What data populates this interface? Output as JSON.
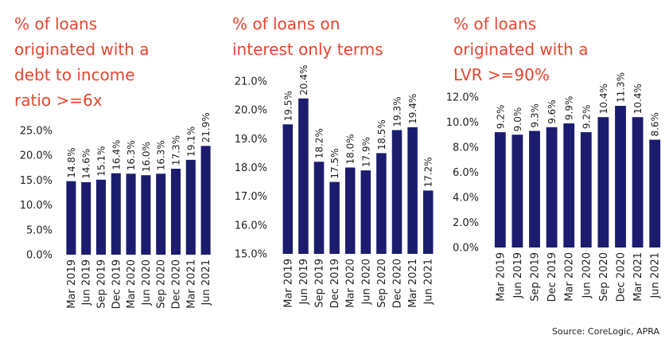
{
  "source": "Source:  CoreLogic, APRA",
  "colors": {
    "bar": "#1c1c6e",
    "title": "#e8452e",
    "text": "#222222"
  },
  "chart_data": [
    {
      "type": "bar",
      "title_lines": [
        "% of loans",
        "originated with a",
        "debt to income",
        "ratio >=6x"
      ],
      "categories": [
        "Mar 2019",
        "Jun 2019",
        "Sep 2019",
        "Dec 2019",
        "Mar 2020",
        "Jun 2020",
        "Sep 2020",
        "Dec 2020",
        "Mar 2021",
        "Jun 2021"
      ],
      "values": [
        14.8,
        14.6,
        15.1,
        16.4,
        16.3,
        16.0,
        16.3,
        17.3,
        19.1,
        21.9
      ],
      "value_labels": [
        "14.8%",
        "14.6%",
        "15.1%",
        "16.4%",
        "16.3%",
        "16.0%",
        "16.3%",
        "17.3%",
        "19.1%",
        "21.9%"
      ],
      "ylim": [
        0,
        25
      ],
      "yticks": [
        "0.0%",
        "5.0%",
        "10.0%",
        "15.0%",
        "20.0%",
        "25.0%"
      ]
    },
    {
      "type": "bar",
      "title_lines": [
        "% of loans on",
        "interest only terms"
      ],
      "categories": [
        "Mar 2019",
        "Jun 2019",
        "Sep 2019",
        "Dec 2019",
        "Mar 2020",
        "Jun 2020",
        "Sep 2020",
        "Dec 2020",
        "Mar 2021",
        "Jun 2021"
      ],
      "values": [
        19.5,
        20.4,
        18.2,
        17.5,
        18.0,
        17.9,
        18.5,
        19.3,
        19.4,
        17.2
      ],
      "value_labels": [
        "19.5%",
        "20.4%",
        "18.2%",
        "17.5%",
        "18.0%",
        "17.9%",
        "18.5%",
        "19.3%",
        "19.4%",
        "17.2%"
      ],
      "ylim": [
        15,
        21
      ],
      "yticks": [
        "15.0%",
        "16.0%",
        "17.0%",
        "18.0%",
        "19.0%",
        "20.0%",
        "21.0%"
      ]
    },
    {
      "type": "bar",
      "title_lines": [
        "% of loans",
        "originated with a",
        "LVR >=90%"
      ],
      "categories": [
        "Mar 2019",
        "Jun 2019",
        "Sep 2019",
        "Dec 2019",
        "Mar 2020",
        "Jun 2020",
        "Sep 2020",
        "Dec 2020",
        "Mar 2021",
        "Jun 2021"
      ],
      "values": [
        9.2,
        9.0,
        9.3,
        9.6,
        9.9,
        9.2,
        10.4,
        11.3,
        10.4,
        8.6
      ],
      "value_labels": [
        "9.2%",
        "9.0%",
        "9.3%",
        "9.6%",
        "9.9%",
        "9.2%",
        "10.4%",
        "11.3%",
        "10.4%",
        "8.6%"
      ],
      "ylim": [
        0,
        12
      ],
      "yticks": [
        "0.0%",
        "2.0%",
        "4.0%",
        "6.0%",
        "8.0%",
        "10.0%",
        "12.0%"
      ]
    }
  ]
}
